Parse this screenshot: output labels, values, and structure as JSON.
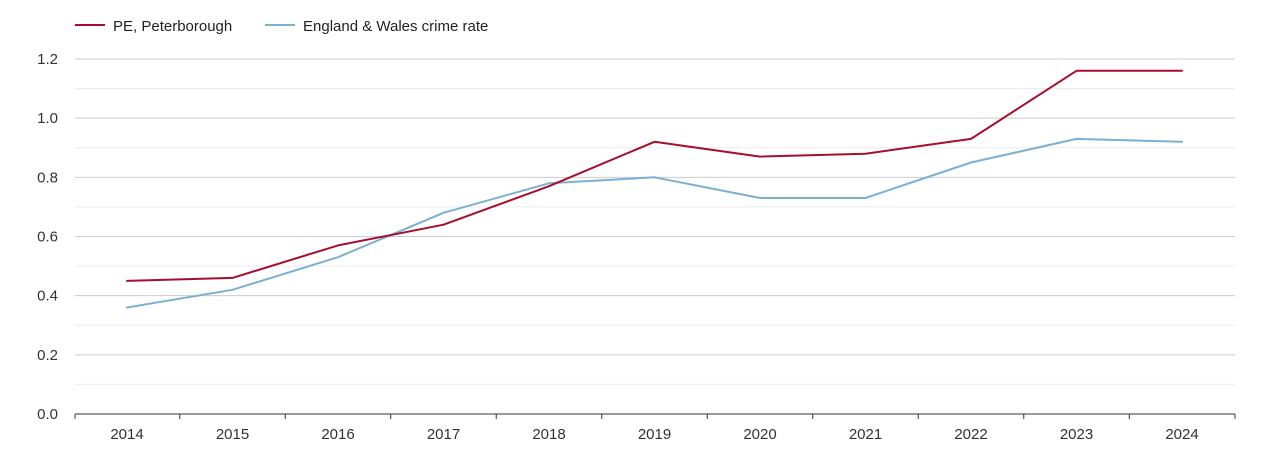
{
  "chart_data": {
    "type": "line",
    "title": "",
    "xlabel": "",
    "ylabel": "",
    "categories": [
      "2014",
      "2015",
      "2016",
      "2017",
      "2018",
      "2019",
      "2020",
      "2021",
      "2022",
      "2023",
      "2024"
    ],
    "ylim": [
      0,
      1.2
    ],
    "yticks": [
      "0.0",
      "0.2",
      "0.4",
      "0.6",
      "0.8",
      "1.0",
      "1.2"
    ],
    "grid": true,
    "legend_position": "top-left",
    "series": [
      {
        "name": "PE, Peterborough",
        "color": "#a50f2d",
        "values": [
          0.45,
          0.46,
          0.57,
          0.64,
          0.77,
          0.92,
          0.87,
          0.88,
          0.93,
          1.16,
          1.16
        ]
      },
      {
        "name": "England & Wales crime rate",
        "color": "#7bafd4",
        "values": [
          0.36,
          0.42,
          0.53,
          0.68,
          0.78,
          0.8,
          0.73,
          0.73,
          0.85,
          0.93,
          0.92
        ]
      }
    ]
  }
}
